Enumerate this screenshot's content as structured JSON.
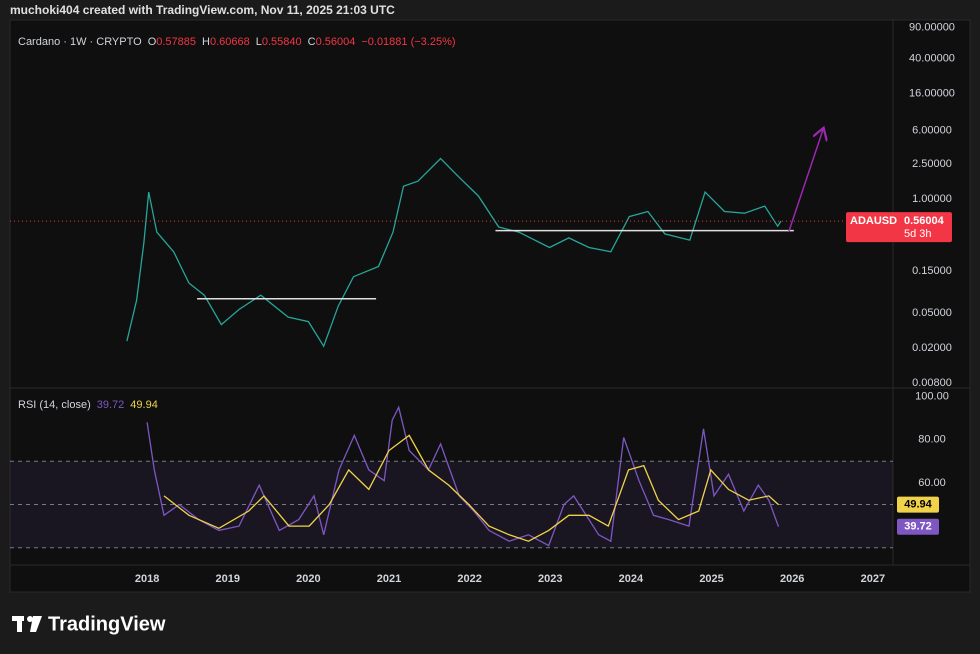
{
  "header": "muchoki404 created with TradingView.com, Nov 11, 2025 21:03 UTC",
  "legend": {
    "symbol": "Cardano · 1W · CRYPTO",
    "open_label": "O",
    "open": "0.57885",
    "high_label": "H",
    "high": "0.60668",
    "low_label": "L",
    "low": "0.55840",
    "close_label": "C",
    "change": "−0.01881 (−3.25%)"
  },
  "brand": "TradingView",
  "chart_data": [
    {
      "type": "line",
      "log_scale": true,
      "color": "#26a69a",
      "ylim": [
        0.007,
        110
      ],
      "yticks": [
        {
          "value": 90,
          "label": "90.00000"
        },
        {
          "value": 40,
          "label": "40.00000"
        },
        {
          "value": 16,
          "label": "16.00000"
        },
        {
          "value": 6,
          "label": "6.00000"
        },
        {
          "value": 2.5,
          "label": "2.50000"
        },
        {
          "value": 1,
          "label": "1.00000"
        },
        {
          "value": 0.15,
          "label": "0.15000"
        },
        {
          "value": 0.05,
          "label": "0.05000"
        },
        {
          "value": 0.02,
          "label": "0.02000"
        },
        {
          "value": 0.008,
          "label": "0.00800"
        }
      ],
      "series": [
        {
          "color": "#26a69a",
          "x": [
            2017.75,
            2017.87,
            2017.96,
            2018.02,
            2018.12,
            2018.33,
            2018.52,
            2018.71,
            2018.92,
            2019.14,
            2019.41,
            2019.75,
            2020.0,
            2020.19,
            2020.37,
            2020.56,
            2020.87,
            2021.05,
            2021.18,
            2021.36,
            2021.64,
            2021.86,
            2022.11,
            2022.36,
            2022.61,
            2022.99,
            2023.23,
            2023.48,
            2023.75,
            2023.98,
            2024.21,
            2024.42,
            2024.73,
            2024.92,
            2025.16,
            2025.41,
            2025.66,
            2025.82,
            2025.86
          ],
          "values": [
            0.024,
            0.07,
            0.32,
            1.2,
            0.42,
            0.25,
            0.11,
            0.08,
            0.037,
            0.055,
            0.08,
            0.045,
            0.04,
            0.021,
            0.06,
            0.13,
            0.17,
            0.42,
            1.4,
            1.6,
            2.9,
            1.8,
            1.08,
            0.48,
            0.42,
            0.28,
            0.36,
            0.28,
            0.25,
            0.63,
            0.72,
            0.4,
            0.34,
            1.2,
            0.72,
            0.69,
            0.83,
            0.49,
            0.56004
          ]
        }
      ],
      "symbol": "ADAUSD",
      "countdown": "5d 3h",
      "last_color": "#f23645",
      "drawings": [
        {
          "x": [
            2018.62,
            2020.84
          ],
          "y": [
            0.073,
            0.073
          ],
          "color": "#e0e0e0"
        },
        {
          "x": [
            2022.32,
            2026.02
          ],
          "y": [
            0.436,
            0.436
          ],
          "color": "#e0e0e0"
        },
        {
          "x": [
            2025.96,
            2026.39
          ],
          "y": [
            0.43,
            6.5
          ],
          "color": "#9c27b0",
          "arrow": true
        }
      ]
    },
    {
      "type": "line",
      "title": "RSI (14, close)",
      "xlim": [
        2016.3,
        2027.25
      ],
      "xticks": [
        2018,
        2019,
        2020,
        2021,
        2022,
        2023,
        2024,
        2025,
        2026,
        2027
      ],
      "ylim": [
        22,
        103
      ],
      "yticks": [
        {
          "value": 100,
          "label": "100.00"
        },
        {
          "value": 80,
          "label": "80.00"
        },
        {
          "value": 60,
          "label": "60.00"
        }
      ],
      "levels": [
        70,
        50,
        30
      ],
      "series": [
        {
          "color": "#7e57c2",
          "x": [
            2018.0,
            2018.09,
            2018.21,
            2018.4,
            2018.64,
            2018.89,
            2019.14,
            2019.39,
            2019.64,
            2019.88,
            2020.07,
            2020.19,
            2020.38,
            2020.57,
            2020.75,
            2020.94,
            2021.04,
            2021.12,
            2021.25,
            2021.49,
            2021.64,
            2021.87,
            2022.05,
            2022.24,
            2022.49,
            2022.73,
            2022.98,
            2023.17,
            2023.29,
            2023.48,
            2023.6,
            2023.75,
            2023.91,
            2024.1,
            2024.28,
            2024.47,
            2024.72,
            2024.9,
            2025.03,
            2025.21,
            2025.4,
            2025.58,
            2025.71,
            2025.83
          ],
          "values": [
            88,
            66,
            45,
            50,
            43,
            38,
            40,
            59,
            38,
            43,
            54,
            36,
            66,
            82,
            66,
            61,
            89,
            95,
            75,
            66,
            78,
            54,
            47,
            38,
            33,
            36,
            31,
            50,
            54,
            43,
            36,
            33,
            81,
            61,
            45,
            43,
            40,
            85,
            54,
            64,
            47,
            59,
            52,
            39.72
          ]
        },
        {
          "color": "#f0d34a",
          "x": [
            2018.21,
            2018.52,
            2018.89,
            2019.26,
            2019.45,
            2019.76,
            2020.01,
            2020.26,
            2020.5,
            2020.75,
            2021.0,
            2021.25,
            2021.49,
            2021.74,
            2021.99,
            2022.24,
            2022.49,
            2022.73,
            2022.98,
            2023.23,
            2023.48,
            2023.72,
            2023.97,
            2024.16,
            2024.34,
            2024.59,
            2024.84,
            2024.99,
            2025.21,
            2025.46,
            2025.71,
            2025.83
          ],
          "values": [
            54,
            45,
            39,
            47,
            54,
            40,
            40,
            50,
            66,
            57,
            75,
            82,
            66,
            59,
            50,
            40,
            36,
            33,
            38,
            45,
            45,
            40,
            66,
            68,
            52,
            43,
            47,
            66,
            57,
            52,
            54,
            49.94
          ]
        }
      ]
    }
  ]
}
